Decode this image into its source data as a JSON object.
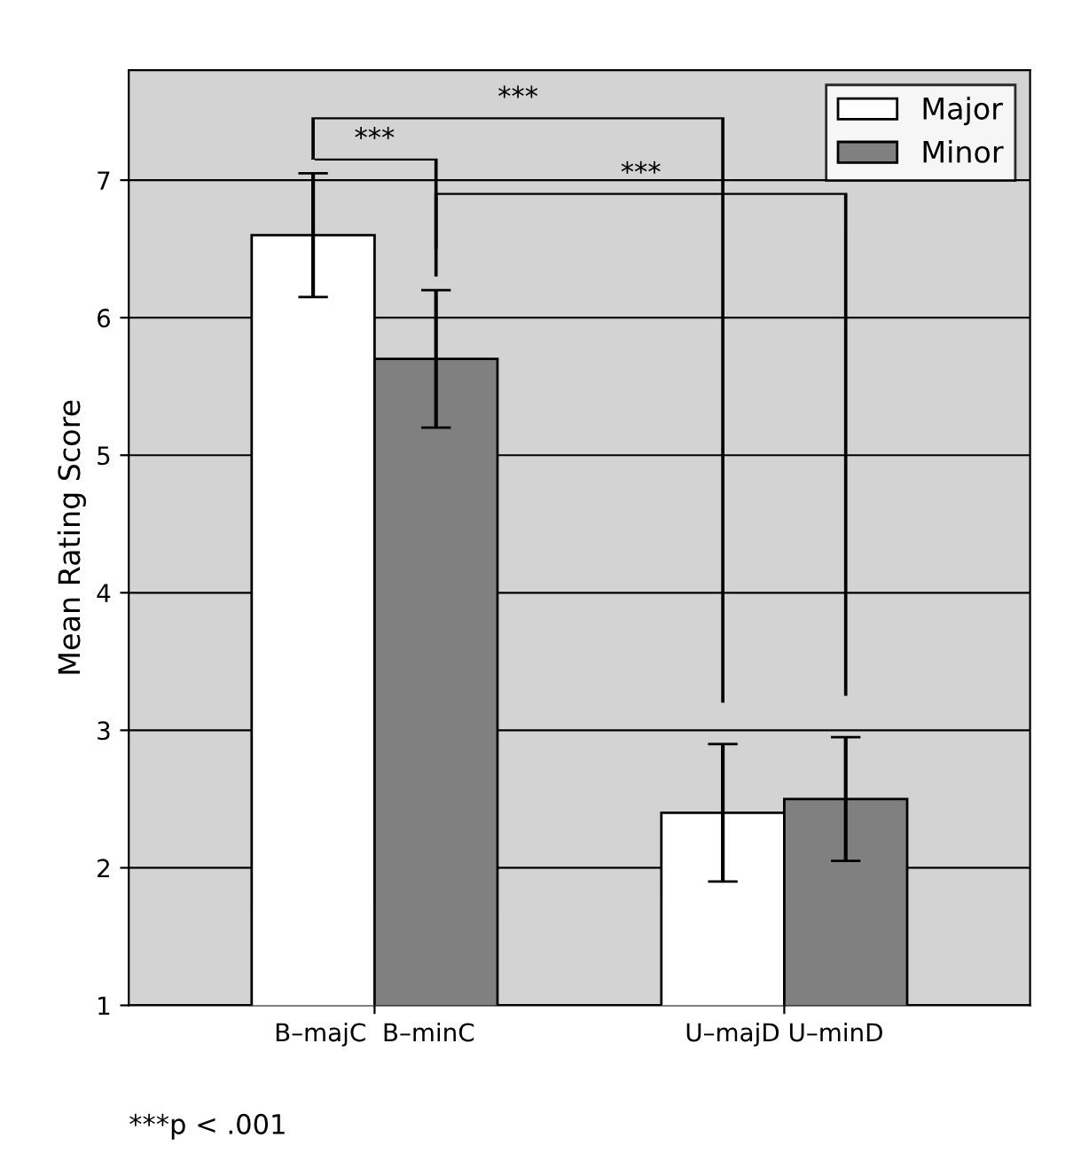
{
  "chart_data": {
    "type": "bar",
    "ylabel": "Mean Rating Score",
    "categories": [
      "B–majC  B–minC",
      "U–majD U–minD"
    ],
    "series": [
      {
        "name": "Major",
        "color": "#ffffff",
        "values": [
          6.6,
          2.4
        ],
        "errors": [
          0.45,
          0.5
        ]
      },
      {
        "name": "Minor",
        "color": "#808080",
        "values": [
          5.7,
          2.5
        ],
        "errors": [
          0.5,
          0.45
        ]
      }
    ],
    "ylim": [
      1,
      7.8
    ],
    "yticks": [
      1,
      2,
      3,
      4,
      5,
      6,
      7
    ],
    "grid": "y",
    "legend": "top right",
    "annotations": [
      "***",
      "***",
      "***",
      "***p < .001"
    ]
  }
}
